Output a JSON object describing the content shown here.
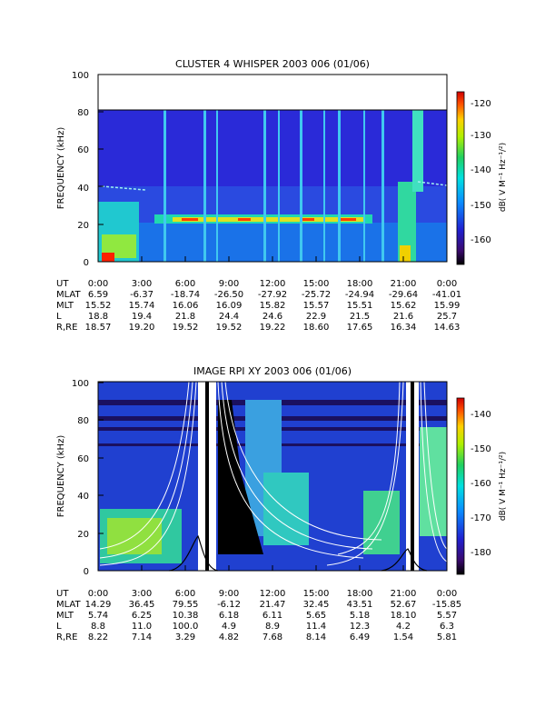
{
  "chart_data": [
    {
      "type": "heatmap",
      "title": "CLUSTER 4 WHISPER 2003 006 (01/06)",
      "ylabel": "FREQUENCY (kHz)",
      "ylim": [
        0,
        100
      ],
      "yticks": [
        "0",
        "20",
        "40",
        "60",
        "80",
        "100"
      ],
      "data_top_khz": 80,
      "colorbar": {
        "label": "dB( V M⁻¹ Hz⁻¹/²)",
        "range": [
          -167,
          -116
        ],
        "ticks": [
          "-120",
          "-130",
          "-140",
          "-150",
          "-160"
        ]
      },
      "features": {
        "emission_band_khz": 22,
        "noise_lines_khz": [
          43,
          8
        ],
        "high_intensity_low_freq_hours": [
          [
            0,
            6.2
          ],
          [
            20.3,
            21.0
          ]
        ]
      },
      "ephemeris": {
        "labels": [
          "UT",
          "MLAT",
          "MLT",
          "L",
          "R,RE"
        ],
        "columns": [
          [
            "0:00",
            "6.59",
            "15.52",
            "18.8",
            "18.57"
          ],
          [
            "3:00",
            "-6.37",
            "15.74",
            "19.4",
            "19.20"
          ],
          [
            "6:00",
            "-18.74",
            "16.06",
            "21.8",
            "19.52"
          ],
          [
            "9:00",
            "-26.50",
            "16.09",
            "24.4",
            "19.52"
          ],
          [
            "12:00",
            "-27.92",
            "15.82",
            "24.6",
            "19.22"
          ],
          [
            "15:00",
            "-25.72",
            "15.57",
            "22.9",
            "18.60"
          ],
          [
            "18:00",
            "-24.94",
            "15.51",
            "21.5",
            "17.65"
          ],
          [
            "21:00",
            "-29.64",
            "15.62",
            "21.6",
            "16.34"
          ],
          [
            "0:00",
            "-41.01",
            "15.99",
            "25.7",
            "14.63"
          ]
        ]
      }
    },
    {
      "type": "heatmap",
      "title": "IMAGE RPI XY 2003 006 (01/06)",
      "ylabel": "FREQUENCY (kHz)",
      "ylim": [
        0,
        100
      ],
      "yticks": [
        "0",
        "20",
        "40",
        "60",
        "80",
        "100"
      ],
      "colorbar": {
        "label": "dB( V M⁻¹ Hz⁻¹/²)",
        "range": [
          -186,
          -134
        ],
        "ticks": [
          "-140",
          "-150",
          "-160",
          "-170",
          "-180"
        ]
      },
      "features": {
        "perigee_hours": [
          7.6,
          22.2
        ],
        "plasma_freq_peak_khz": 20
      },
      "ephemeris": {
        "labels": [
          "UT",
          "MLAT",
          "MLT",
          "L",
          "R,RE"
        ],
        "columns": [
          [
            "0:00",
            "14.29",
            "5.74",
            "8.8",
            "8.22"
          ],
          [
            "3:00",
            "36.45",
            "6.25",
            "11.0",
            "7.14"
          ],
          [
            "6:00",
            "79.55",
            "10.38",
            "100.0",
            "3.29"
          ],
          [
            "9:00",
            "-6.12",
            "6.18",
            "4.9",
            "4.82"
          ],
          [
            "12:00",
            "21.47",
            "6.11",
            "8.9",
            "7.68"
          ],
          [
            "15:00",
            "32.45",
            "5.65",
            "11.4",
            "8.14"
          ],
          [
            "18:00",
            "43.51",
            "5.18",
            "12.3",
            "6.49"
          ],
          [
            "21:00",
            "52.67",
            "18.10",
            "4.2",
            "1.54"
          ],
          [
            "0:00",
            "-15.85",
            "5.57",
            "6.3",
            "5.81"
          ]
        ]
      }
    }
  ]
}
